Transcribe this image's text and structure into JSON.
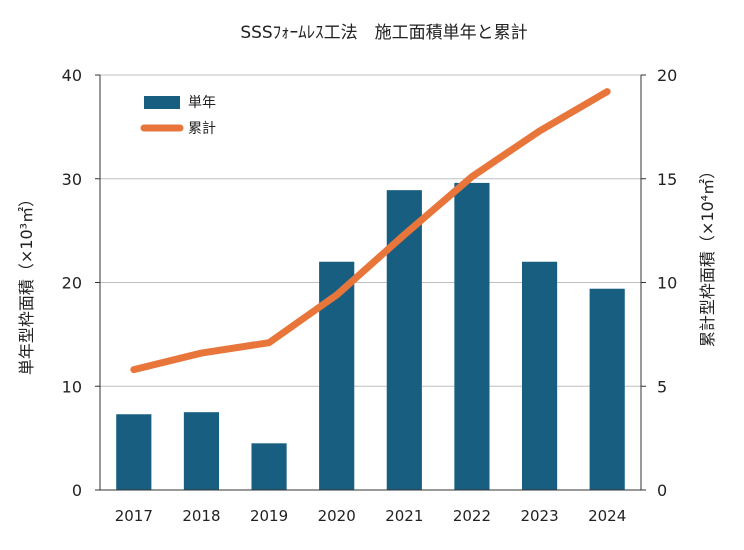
{
  "chart_data": {
    "type": "bar",
    "title": "SSSﾌｫｰﾑﾚｽ工法　施工面積単年と累計",
    "categories": [
      "2017",
      "2018",
      "2019",
      "2020",
      "2021",
      "2022",
      "2023",
      "2024"
    ],
    "series": [
      {
        "name": "単年",
        "type": "bar",
        "axis": "left",
        "color": "#175e81",
        "values": [
          7.3,
          7.5,
          4.5,
          22.0,
          28.9,
          29.6,
          22.0,
          19.4
        ]
      },
      {
        "name": "累計",
        "type": "line",
        "axis": "right",
        "color": "#e8763b",
        "values": [
          5.8,
          6.6,
          7.1,
          9.4,
          12.3,
          15.1,
          17.3,
          19.2
        ]
      }
    ],
    "ylabel": "単年型枠面積（×10³㎡）",
    "y2label": "累計型枠面積（×10⁴㎡）",
    "ylim": [
      0,
      40
    ],
    "y2lim": [
      0,
      20
    ],
    "yticks": [
      "0",
      "10",
      "20",
      "30",
      "40"
    ],
    "y2ticks": [
      "0",
      "5",
      "10",
      "15",
      "20"
    ],
    "legend_position": "top-left",
    "grid": "horizontal"
  }
}
